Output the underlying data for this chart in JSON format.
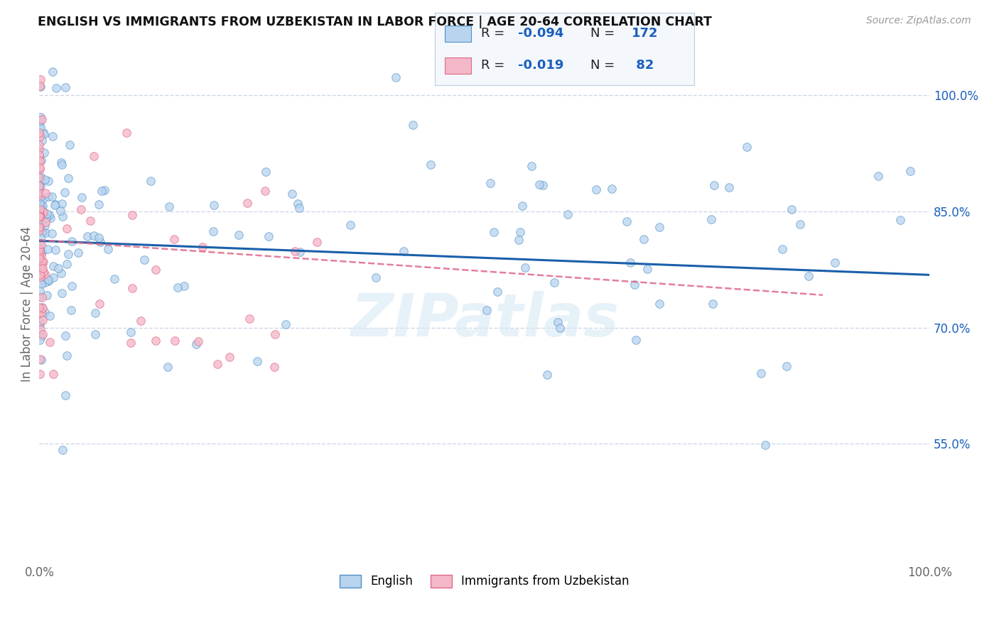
{
  "title": "ENGLISH VS IMMIGRANTS FROM UZBEKISTAN IN LABOR FORCE | AGE 20-64 CORRELATION CHART",
  "source": "Source: ZipAtlas.com",
  "ylabel": "In Labor Force | Age 20-64",
  "xlim": [
    0.0,
    1.0
  ],
  "ylim": [
    0.4,
    1.06
  ],
  "ytick_vals": [
    0.55,
    0.7,
    0.85,
    1.0
  ],
  "color_english": "#b8d4ee",
  "color_uzbek": "#f4b8c8",
  "color_edge_english": "#5090c8",
  "color_edge_uzbek": "#e06888",
  "color_line_english": "#1a5faa",
  "color_line_uzbek": "#e06888",
  "background_color": "#ffffff",
  "grid_color": "#c0cfe0",
  "legend_text_color": "#1a5fbb",
  "axis_color": "#666666",
  "watermark_color": "#d8e8f4",
  "seed": 17
}
